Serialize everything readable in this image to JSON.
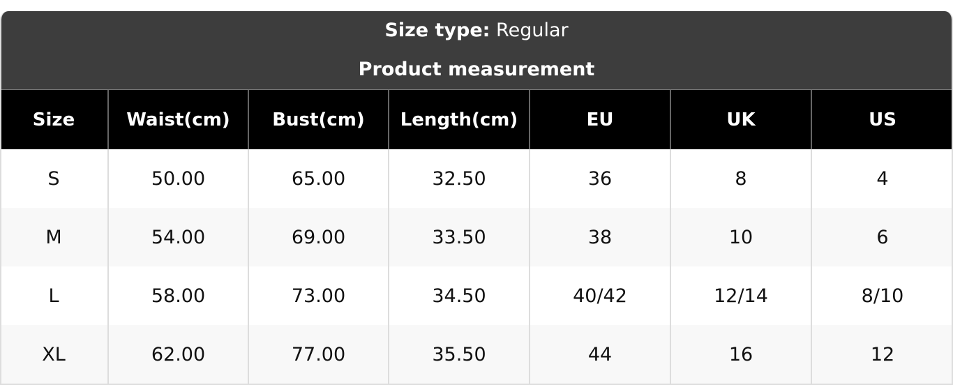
{
  "header": {
    "size_type_label": "Size type:",
    "size_type_value": "Regular",
    "subtitle": "Product measurement"
  },
  "table": {
    "columns": [
      "Size",
      "Waist(cm)",
      "Bust(cm)",
      "Length(cm)",
      "EU",
      "UK",
      "US"
    ],
    "rows": [
      [
        "S",
        "50.00",
        "65.00",
        "32.50",
        "36",
        "8",
        "4"
      ],
      [
        "M",
        "54.00",
        "69.00",
        "33.50",
        "38",
        "10",
        "6"
      ],
      [
        "L",
        "58.00",
        "73.00",
        "34.50",
        "40/42",
        "12/14",
        "8/10"
      ],
      [
        "XL",
        "62.00",
        "77.00",
        "35.50",
        "44",
        "16",
        "12"
      ]
    ]
  }
}
